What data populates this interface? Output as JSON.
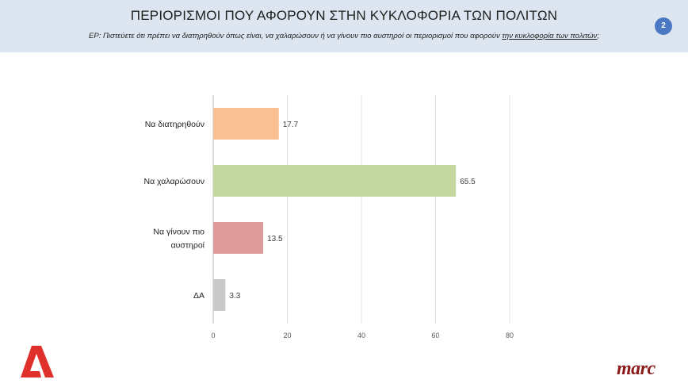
{
  "header": {
    "title": "ΠΕΡΙΟΡΙΣΜΟΙ ΠΟΥ ΑΦΟΡΟΥΝ ΣΤΗΝ ΚΥΚΛΟΦΟΡΙΑ ΤΩΝ ΠΟΛΙΤΩΝ",
    "question_main": "ΕΡ:  Πιστεύετε ότι πρέπει  να διατηρηθούν όπως είναι, να χαλαρώσουν ή να γίνουν πιο αυστηροί  οι περιορισμοί που αφορούν ",
    "question_underlined": "την κυκλοφορία των πολιτών",
    "question_end": ";",
    "page_number": "2"
  },
  "logos": {
    "left": "alpha-logo-icon",
    "right_text": "marc"
  },
  "chart_data": {
    "type": "bar",
    "orientation": "horizontal",
    "categories": [
      [
        "Να διατηρηθούν"
      ],
      [
        "Να χαλαρώσουν"
      ],
      [
        "Να γίνουν πιο",
        "αυστηροί"
      ],
      [
        "ΔΑ"
      ]
    ],
    "values": [
      17.7,
      65.5,
      13.5,
      3.3
    ],
    "value_labels": [
      "17.7",
      "65.5",
      "13.5",
      "3.3"
    ],
    "colors": [
      "#f9c193",
      "#c5d7a0",
      "#dd9b9b",
      "#c9c9c9"
    ],
    "xlim": [
      0,
      80
    ],
    "xticks": [
      "0",
      "20",
      "40",
      "60",
      "80"
    ],
    "grid": true,
    "title": "",
    "xlabel": "",
    "ylabel": ""
  }
}
